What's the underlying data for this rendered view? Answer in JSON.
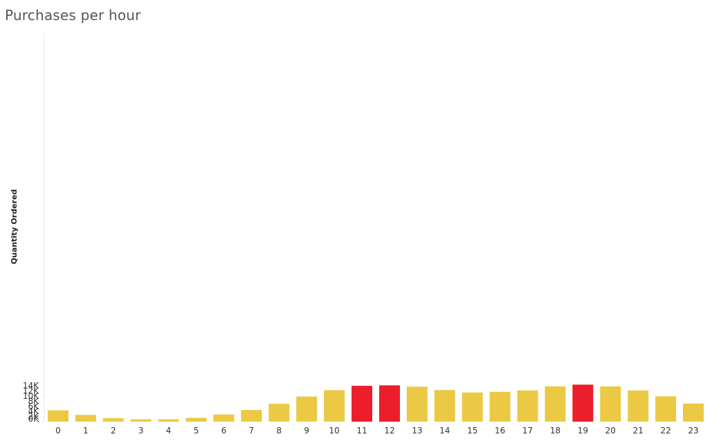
{
  "chart_data": {
    "type": "bar",
    "title": "Purchases per hour",
    "xlabel": "",
    "ylabel": "Quantity Ordered",
    "ylim": [
      0,
      15000
    ],
    "yticks": [
      {
        "value": 0,
        "label": "0K"
      },
      {
        "value": 2000,
        "label": "2K"
      },
      {
        "value": 4000,
        "label": "4K"
      },
      {
        "value": 6000,
        "label": "6K"
      },
      {
        "value": 8000,
        "label": "8K"
      },
      {
        "value": 10000,
        "label": "10K"
      },
      {
        "value": 12000,
        "label": "12K"
      },
      {
        "value": 14000,
        "label": "14K"
      }
    ],
    "categories": [
      "0",
      "1",
      "2",
      "3",
      "4",
      "5",
      "6",
      "7",
      "8",
      "9",
      "10",
      "11",
      "12",
      "13",
      "14",
      "15",
      "16",
      "17",
      "18",
      "19",
      "20",
      "21",
      "22",
      "23"
    ],
    "values": [
      4430,
      2620,
      1390,
      910,
      930,
      1470,
      2800,
      4560,
      7000,
      9820,
      12310,
      14010,
      14200,
      13680,
      12360,
      11400,
      11670,
      12230,
      13790,
      14470,
      13760,
      12220,
      9900,
      7070
    ],
    "colors": {
      "default": "#EBC944",
      "highlight": "#EC1E2C"
    },
    "highlighted": [
      11,
      12,
      19
    ],
    "grid": false,
    "legend": "none"
  }
}
